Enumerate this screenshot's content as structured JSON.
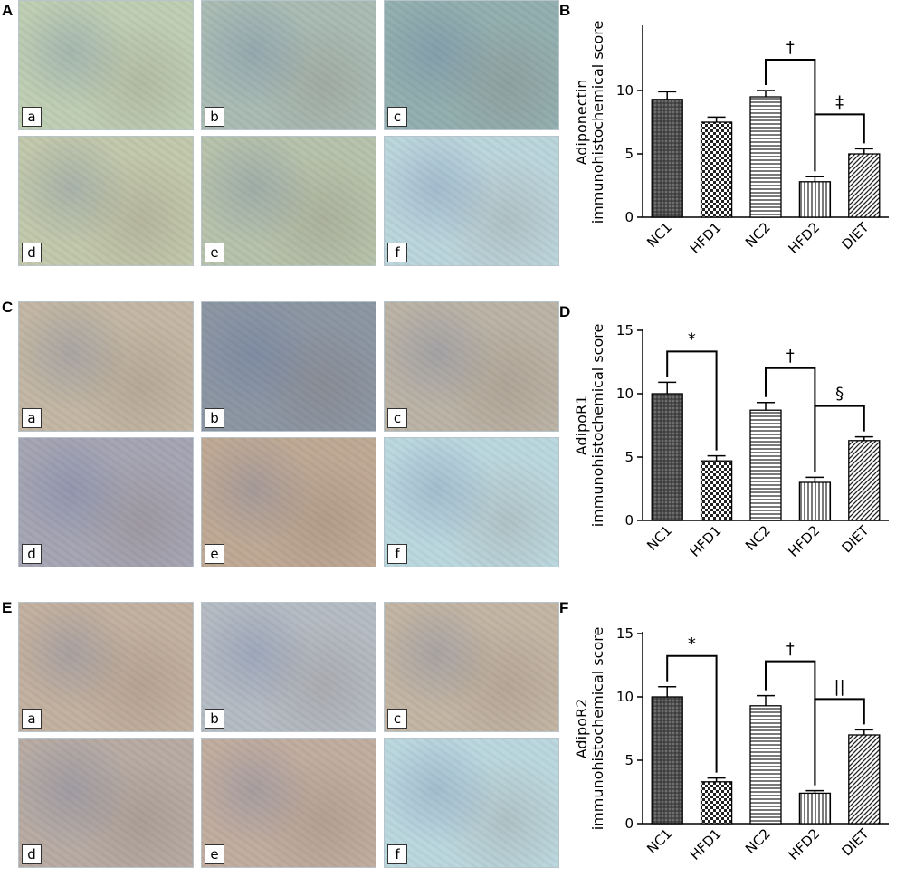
{
  "panels": {
    "A": "A",
    "B": "B",
    "C": "C",
    "D": "D",
    "E": "E",
    "F": "F"
  },
  "micrograph_labels": [
    "a",
    "b",
    "c",
    "d",
    "e",
    "f"
  ],
  "micrograph_groups": [
    {
      "panel": "A",
      "stain": "adiponectin",
      "tints": [
        "#bfcfb4",
        "#aabcb4",
        "#94b0b0",
        "#c3c9ac",
        "#b7c3ac",
        "#bcd6dd"
      ]
    },
    {
      "panel": "C",
      "stain": "AdipoR1",
      "tints": [
        "#c4b8a4",
        "#8d97a4",
        "#bcb4a6",
        "#a7a6b4",
        "#c0aa96",
        "#bcd8df"
      ]
    },
    {
      "panel": "E",
      "stain": "AdipoR2",
      "tints": [
        "#c4b2a0",
        "#b6bcc4",
        "#c4b6a4",
        "#b8aca4",
        "#c2aea0",
        "#bcd8df"
      ]
    }
  ],
  "chart_data": [
    {
      "type": "bar",
      "panel": "B",
      "ylabel_line1": "Adiponectin",
      "ylabel_line2": "immunohistochemical score",
      "ylim": [
        0,
        15
      ],
      "yticks": [
        0,
        5,
        10
      ],
      "categories": [
        "NC1",
        "HFD1",
        "NC2",
        "HFD2",
        "DIET"
      ],
      "values": [
        9.3,
        7.5,
        9.5,
        2.8,
        5.0
      ],
      "errors": [
        0.6,
        0.4,
        0.5,
        0.4,
        0.4
      ],
      "patterns": [
        "dense-cross",
        "checker",
        "horizontal",
        "vertical",
        "diagonal"
      ],
      "annotations": [
        {
          "symbol": "†",
          "from": 2,
          "to": 3
        },
        {
          "symbol": "‡",
          "from": 3,
          "to": 4
        }
      ]
    },
    {
      "type": "bar",
      "panel": "D",
      "ylabel_line1": "AdipoR1",
      "ylabel_line2": "immunohistochemical score",
      "ylim": [
        0,
        15
      ],
      "yticks": [
        0,
        5,
        10,
        15
      ],
      "categories": [
        "NC1",
        "HFD1",
        "NC2",
        "HFD2",
        "DIET"
      ],
      "values": [
        10.0,
        4.7,
        8.7,
        3.0,
        6.3
      ],
      "errors": [
        0.9,
        0.4,
        0.6,
        0.4,
        0.3
      ],
      "patterns": [
        "dense-cross",
        "checker",
        "horizontal",
        "vertical",
        "diagonal"
      ],
      "annotations": [
        {
          "symbol": "*",
          "from": 0,
          "to": 1
        },
        {
          "symbol": "†",
          "from": 2,
          "to": 3
        },
        {
          "symbol": "§",
          "from": 3,
          "to": 4
        }
      ]
    },
    {
      "type": "bar",
      "panel": "F",
      "ylabel_line1": "AdipoR2",
      "ylabel_line2": "immunohistochemical score",
      "ylim": [
        0,
        15
      ],
      "yticks": [
        0,
        5,
        10,
        15
      ],
      "categories": [
        "NC1",
        "HFD1",
        "NC2",
        "HFD2",
        "DIET"
      ],
      "values": [
        10.0,
        3.3,
        9.3,
        2.4,
        7.0
      ],
      "errors": [
        0.8,
        0.3,
        0.8,
        0.2,
        0.4
      ],
      "patterns": [
        "dense-cross",
        "checker",
        "horizontal",
        "vertical",
        "diagonal"
      ],
      "annotations": [
        {
          "symbol": "*",
          "from": 0,
          "to": 1
        },
        {
          "symbol": "†",
          "from": 2,
          "to": 3
        },
        {
          "symbol": "||",
          "from": 3,
          "to": 4
        }
      ]
    }
  ]
}
